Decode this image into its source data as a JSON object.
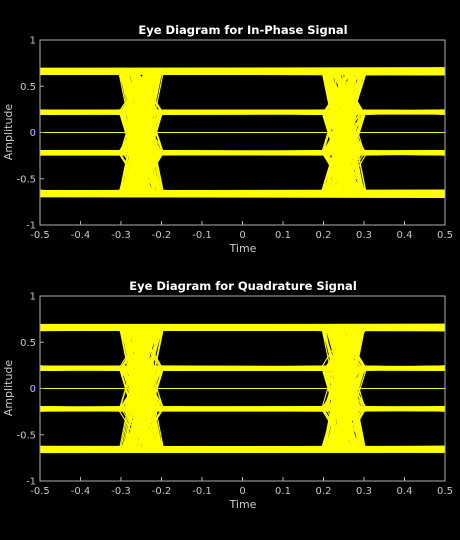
{
  "figure": {
    "background": "#000000"
  },
  "chart_data": [
    {
      "type": "line",
      "title": "Eye Diagram for In-Phase Signal",
      "xlabel": "Time",
      "ylabel": "Amplitude",
      "xlim": [
        -0.5,
        0.5
      ],
      "ylim": [
        -1,
        1
      ],
      "xticks": [
        "-0.5",
        "-0.4",
        "-0.3",
        "-0.2",
        "-0.1",
        "0",
        "0.1",
        "0.2",
        "0.3",
        "0.4",
        "0.5"
      ],
      "yticks": [
        "1",
        "0.5",
        "0",
        "-0.5",
        "-1"
      ],
      "grid": false,
      "legend": "none",
      "trace_color": "#ffff00",
      "symbol_levels": [
        -0.65,
        -0.22,
        0.22,
        0.65
      ],
      "crossing_times": [
        -0.25,
        0.25
      ]
    },
    {
      "type": "line",
      "title": "Eye Diagram for Quadrature Signal",
      "xlabel": "Time",
      "ylabel": "Amplitude",
      "xlim": [
        -0.5,
        0.5
      ],
      "ylim": [
        -1,
        1
      ],
      "xticks": [
        "-0.5",
        "-0.4",
        "-0.3",
        "-0.2",
        "-0.1",
        "0",
        "0.1",
        "0.2",
        "0.3",
        "0.4",
        "0.5"
      ],
      "yticks": [
        "1",
        "0.5",
        "0",
        "-0.5",
        "-1"
      ],
      "grid": false,
      "legend": "none",
      "trace_color": "#ffff00",
      "symbol_levels": [
        -0.65,
        -0.22,
        0.22,
        0.65
      ],
      "crossing_times": [
        -0.25,
        0.25
      ]
    }
  ]
}
